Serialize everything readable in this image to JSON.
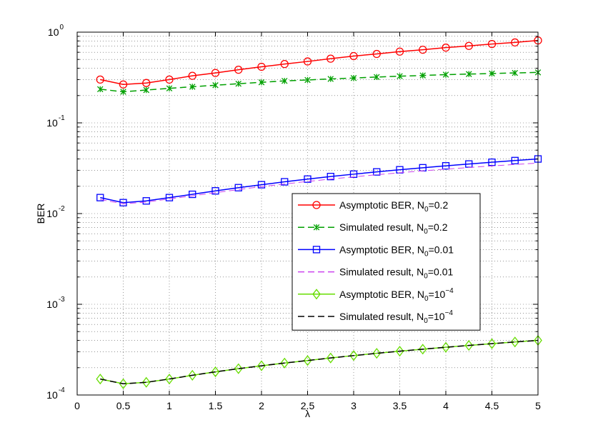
{
  "chart_data": {
    "type": "line",
    "xlabel": "λ",
    "ylabel": "BER",
    "xlim": [
      0,
      5
    ],
    "ylim": [
      0.0001,
      1
    ],
    "yscale": "log",
    "grid": "on (dotted, major and minor)",
    "legend_position": "inside, right",
    "x_ticks": [
      "0",
      "0.5",
      "1",
      "1.5",
      "2",
      "2.5",
      "3",
      "3.5",
      "4",
      "4.5",
      "5"
    ],
    "y_ticks": [
      {
        "base": "10",
        "exp": "-4",
        "value": 0.0001
      },
      {
        "base": "10",
        "exp": "-3",
        "value": 0.001
      },
      {
        "base": "10",
        "exp": "-2",
        "value": 0.01
      },
      {
        "base": "10",
        "exp": "-1",
        "value": 0.1
      },
      {
        "base": "10",
        "exp": "0",
        "value": 1
      }
    ],
    "x": [
      0.25,
      0.5,
      0.75,
      1,
      1.25,
      1.5,
      1.75,
      2,
      2.25,
      2.5,
      2.75,
      3,
      3.25,
      3.5,
      3.75,
      4,
      4.25,
      4.5,
      4.75,
      5
    ],
    "series": [
      {
        "legend_prefix": "Asymptotic BER, N",
        "legend_sub": "0",
        "legend_eq": "=0.2",
        "legend_sup": "",
        "color": "#ff0000",
        "dash": "solid",
        "marker": "circle",
        "values": [
          0.3,
          0.265,
          0.275,
          0.3,
          0.33,
          0.355,
          0.385,
          0.415,
          0.445,
          0.475,
          0.51,
          0.545,
          0.575,
          0.61,
          0.64,
          0.675,
          0.705,
          0.74,
          0.77,
          0.81
        ]
      },
      {
        "legend_prefix": "Simulated result, N",
        "legend_sub": "0",
        "legend_eq": "=0.2",
        "legend_sup": "",
        "color": "#00a000",
        "dash": "dashed",
        "marker": "star",
        "values": [
          0.235,
          0.22,
          0.23,
          0.24,
          0.25,
          0.26,
          0.27,
          0.28,
          0.29,
          0.297,
          0.305,
          0.312,
          0.32,
          0.327,
          0.333,
          0.34,
          0.345,
          0.35,
          0.355,
          0.36
        ]
      },
      {
        "legend_prefix": "Asymptotic BER, N",
        "legend_sub": "0",
        "legend_eq": "=0.01",
        "legend_sup": "",
        "color": "#0000ff",
        "dash": "solid",
        "marker": "square",
        "values": [
          0.015,
          0.0132,
          0.0138,
          0.015,
          0.0163,
          0.0178,
          0.0193,
          0.0208,
          0.0224,
          0.024,
          0.0256,
          0.0272,
          0.0288,
          0.0304,
          0.032,
          0.0336,
          0.0352,
          0.0368,
          0.0384,
          0.04
        ]
      },
      {
        "legend_prefix": "Simulated result, N",
        "legend_sub": "0",
        "legend_eq": "=0.01",
        "legend_sup": "",
        "color": "#cc44ee",
        "dash": "dashed",
        "marker": "none",
        "values": [
          0.0143,
          0.0128,
          0.0134,
          0.0145,
          0.0157,
          0.017,
          0.0184,
          0.0198,
          0.0212,
          0.0226,
          0.024,
          0.0254,
          0.0268,
          0.0282,
          0.0296,
          0.0309,
          0.0322,
          0.0335,
          0.0348,
          0.036
        ]
      },
      {
        "legend_prefix": "Asymptotic BER, N",
        "legend_sub": "0",
        "legend_eq": "=10",
        "legend_sup": "−4",
        "color": "#66dd00",
        "dash": "solid",
        "marker": "diamond",
        "values": [
          0.00015,
          0.000133,
          0.000138,
          0.00015,
          0.000165,
          0.00018,
          0.000195,
          0.00021,
          0.000225,
          0.00024,
          0.000256,
          0.000272,
          0.000288,
          0.000304,
          0.00032,
          0.000336,
          0.000352,
          0.000368,
          0.000384,
          0.0004
        ]
      },
      {
        "legend_prefix": "Simulated result, N",
        "legend_sub": "0",
        "legend_eq": "=10",
        "legend_sup": "−4",
        "color": "#000000",
        "dash": "dashed",
        "marker": "none",
        "values": [
          0.00015,
          0.000133,
          0.000138,
          0.00015,
          0.000165,
          0.00018,
          0.000195,
          0.00021,
          0.000225,
          0.00024,
          0.000256,
          0.000272,
          0.000288,
          0.000304,
          0.00032,
          0.000336,
          0.000352,
          0.000368,
          0.000384,
          0.0004
        ]
      }
    ]
  }
}
